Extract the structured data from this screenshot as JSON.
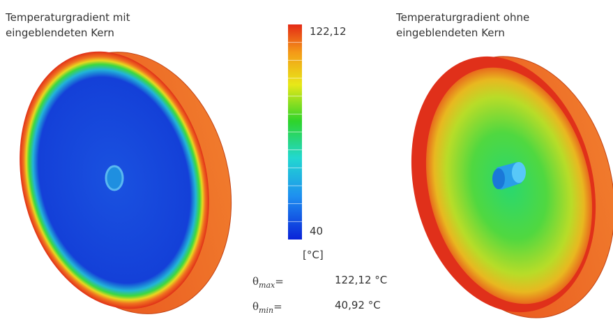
{
  "left_panel": {
    "title_lines": [
      "Temperaturgradient mit",
      "eingeblendeten Kern"
    ]
  },
  "right_panel": {
    "title_lines": [
      "Temperaturgradient ohne",
      "eingeblendeten Kern"
    ]
  },
  "colorbar": {
    "max_label": "122,12",
    "min_label": "40",
    "unit": "[°C]"
  },
  "stats": [
    {
      "symbol": "θ",
      "subscript": "max",
      "operator": "=",
      "value": "122,12 °C"
    },
    {
      "symbol": "θ",
      "subscript": "min",
      "operator": "=",
      "value": "40,92 °C"
    }
  ]
}
